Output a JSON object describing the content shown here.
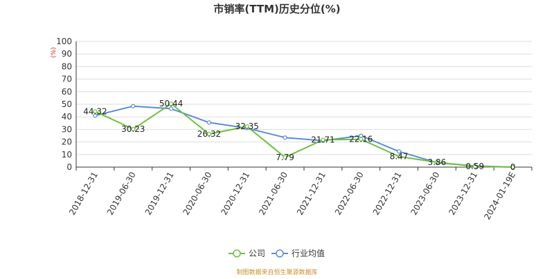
{
  "chart_data": {
    "type": "line",
    "title": "市销率(TTM)历史分位(%)",
    "unit": "(%)",
    "xlabel": "",
    "ylabel": "",
    "ylim": [
      0,
      100
    ],
    "yticks": [
      0,
      10,
      20,
      30,
      40,
      50,
      60,
      70,
      80,
      90,
      100
    ],
    "grid": true,
    "legend_position": "bottom-center",
    "categories": [
      "2018-12-31",
      "2019-06-30",
      "2019-12-31",
      "2020-06-30",
      "2020-12-31",
      "2021-06-30",
      "2021-12-31",
      "2022-06-30",
      "2022-12-31",
      "2023-06-30",
      "2023-12-31",
      "2024-01-19E"
    ],
    "series": [
      {
        "name": "公司",
        "color": "#6cc23a",
        "values": [
          44.32,
          30.23,
          50.44,
          26.32,
          32.35,
          7.79,
          21.71,
          22.16,
          8.47,
          3.86,
          0.59,
          0
        ],
        "labels": [
          "44.32",
          "30.23",
          "50.44",
          "26.32",
          "32.35",
          "7.79",
          "21.71",
          "22.16",
          "8.47",
          "3.86",
          "0.59",
          "0"
        ]
      },
      {
        "name": "行业均值",
        "color": "#5b8bd9",
        "values": [
          41,
          48.5,
          46.5,
          35.5,
          31,
          23.5,
          21,
          25,
          12.5,
          3.5,
          1,
          0
        ]
      }
    ]
  },
  "footer": {
    "source": "制图数据来自恒生聚源数据库"
  }
}
